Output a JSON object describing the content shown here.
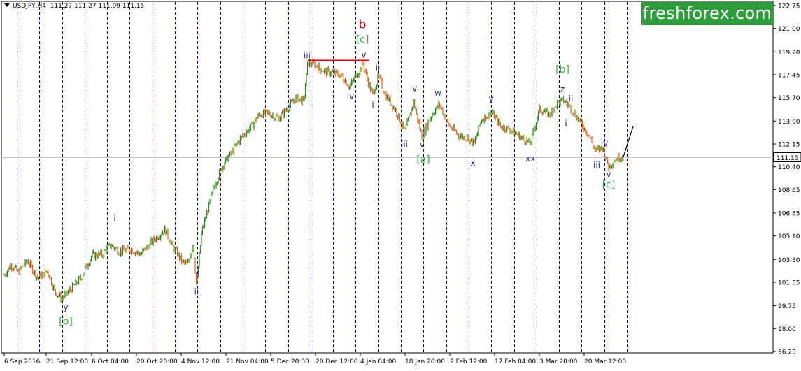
{
  "header": {
    "symbol_timeframe": "USDJPY,H4",
    "ohlc": "111.27 111.27 111.09 111.15"
  },
  "logo": {
    "text": "freshforex.com"
  },
  "colors": {
    "candle_up": "#2e8b1a",
    "candle_down": "#e8621f",
    "grid_vline": "#000080",
    "level_line": "#c8c8c8",
    "wave_label_blue": "#1f2a9c",
    "wave_label_green": "#2fb33a",
    "wave_label_red": "#d40000",
    "resistance_line": "#e00000",
    "brand": "#2e9d3c"
  },
  "chart_data": {
    "type": "candlestick",
    "symbol": "USDJPY",
    "timeframe": "H4",
    "current_price": 111.15,
    "current_price_label": "111.15",
    "ylim": [
      96.25,
      123.0
    ],
    "price_axis_ticks": [
      "122.75",
      "121.00",
      "119.20",
      "117.45",
      "115.70",
      "113.90",
      "112.15",
      "110.40",
      "108.65",
      "106.85",
      "105.10",
      "103.30",
      "101.55",
      "99.75",
      "98.00",
      "96.25"
    ],
    "time_axis_labels": [
      "6 Sep 2016",
      "21 Sep 12:00",
      "6 Oct 04:00",
      "20 Oct 20:00",
      "4 Nov 12:00",
      "21 Nov 04:00",
      "5 Dec 20:00",
      "20 Dec 12:00",
      "4 Jan 04:00",
      "18 Jan 20:00",
      "2 Feb 12:00",
      "17 Feb 04:00",
      "3 Mar 20:00",
      "20 Mar 12:00"
    ],
    "price_path": [
      {
        "t": 0,
        "p": 102.1
      },
      {
        "t": 10,
        "p": 102.9
      },
      {
        "t": 20,
        "p": 102.3
      },
      {
        "t": 33,
        "p": 103.2
      },
      {
        "t": 48,
        "p": 101.9
      },
      {
        "t": 62,
        "p": 102.4
      },
      {
        "t": 72,
        "p": 100.9
      },
      {
        "t": 82,
        "p": 100.3
      },
      {
        "t": 95,
        "p": 101.0
      },
      {
        "t": 110,
        "p": 101.9
      },
      {
        "t": 125,
        "p": 103.6
      },
      {
        "t": 140,
        "p": 103.7
      },
      {
        "t": 152,
        "p": 104.4
      },
      {
        "t": 165,
        "p": 103.9
      },
      {
        "t": 180,
        "p": 104.1
      },
      {
        "t": 195,
        "p": 103.7
      },
      {
        "t": 210,
        "p": 104.6
      },
      {
        "t": 230,
        "p": 105.6
      },
      {
        "t": 240,
        "p": 104.4
      },
      {
        "t": 255,
        "p": 103.1
      },
      {
        "t": 262,
        "p": 102.9
      },
      {
        "t": 270,
        "p": 104.5
      },
      {
        "t": 275,
        "p": 101.2
      },
      {
        "t": 282,
        "p": 105.3
      },
      {
        "t": 290,
        "p": 106.9
      },
      {
        "t": 300,
        "p": 108.9
      },
      {
        "t": 312,
        "p": 110.5
      },
      {
        "t": 325,
        "p": 111.5
      },
      {
        "t": 338,
        "p": 112.6
      },
      {
        "t": 352,
        "p": 113.4
      },
      {
        "t": 365,
        "p": 114.4
      },
      {
        "t": 378,
        "p": 114.5
      },
      {
        "t": 392,
        "p": 114.1
      },
      {
        "t": 405,
        "p": 114.9
      },
      {
        "t": 418,
        "p": 115.7
      },
      {
        "t": 428,
        "p": 115.4
      },
      {
        "t": 434,
        "p": 118.4
      },
      {
        "t": 445,
        "p": 118.2
      },
      {
        "t": 458,
        "p": 117.7
      },
      {
        "t": 470,
        "p": 117.6
      },
      {
        "t": 482,
        "p": 117.4
      },
      {
        "t": 494,
        "p": 116.5
      },
      {
        "t": 505,
        "p": 117.6
      },
      {
        "t": 513,
        "p": 118.3
      },
      {
        "t": 520,
        "p": 116.9
      },
      {
        "t": 527,
        "p": 115.9
      },
      {
        "t": 535,
        "p": 117.3
      },
      {
        "t": 545,
        "p": 115.9
      },
      {
        "t": 560,
        "p": 114.7
      },
      {
        "t": 573,
        "p": 113.1
      },
      {
        "t": 585,
        "p": 115.4
      },
      {
        "t": 597,
        "p": 112.7
      },
      {
        "t": 610,
        "p": 114.3
      },
      {
        "t": 622,
        "p": 115.2
      },
      {
        "t": 635,
        "p": 113.6
      },
      {
        "t": 650,
        "p": 112.8
      },
      {
        "t": 662,
        "p": 112.6
      },
      {
        "t": 672,
        "p": 112.2
      },
      {
        "t": 682,
        "p": 114.0
      },
      {
        "t": 696,
        "p": 114.6
      },
      {
        "t": 710,
        "p": 113.5
      },
      {
        "t": 725,
        "p": 113.2
      },
      {
        "t": 740,
        "p": 112.6
      },
      {
        "t": 752,
        "p": 112.2
      },
      {
        "t": 765,
        "p": 114.8
      },
      {
        "t": 780,
        "p": 114.4
      },
      {
        "t": 790,
        "p": 115.3
      },
      {
        "t": 800,
        "p": 115.5
      },
      {
        "t": 810,
        "p": 114.9
      },
      {
        "t": 822,
        "p": 113.9
      },
      {
        "t": 835,
        "p": 112.9
      },
      {
        "t": 845,
        "p": 111.6
      },
      {
        "t": 855,
        "p": 111.9
      },
      {
        "t": 864,
        "p": 110.4
      },
      {
        "t": 872,
        "p": 110.9
      },
      {
        "t": 882,
        "p": 111.2
      },
      {
        "t": 885,
        "p": 111.15
      }
    ],
    "projection": [
      {
        "t": 885,
        "p": 111.15
      },
      {
        "t": 899,
        "p": 113.5
      }
    ],
    "resistance_line": {
      "t_start": 434,
      "t_end": 522,
      "p": 118.55
    },
    "wave_labels": [
      {
        "text": "y",
        "t": 88,
        "p": 99.4,
        "color": "blue"
      },
      {
        "text": "[b]",
        "t": 88,
        "p": 98.3,
        "color": "green"
      },
      {
        "text": "i",
        "t": 158,
        "p": 106.2,
        "color": "blue"
      },
      {
        "text": "ii",
        "t": 275,
        "p": 100.6,
        "color": "blue"
      },
      {
        "text": "iii",
        "t": 433,
        "p": 118.7,
        "color": "blue"
      },
      {
        "text": "b",
        "t": 512,
        "p": 121.0,
        "color": "red"
      },
      {
        "text": "[c]",
        "t": 512,
        "p": 119.9,
        "color": "green"
      },
      {
        "text": "v",
        "t": 514,
        "p": 118.75,
        "color": "blue"
      },
      {
        "text": "iv",
        "t": 495,
        "p": 115.6,
        "color": "blue"
      },
      {
        "text": "ii",
        "t": 534,
        "p": 117.8,
        "color": "blue"
      },
      {
        "text": "i",
        "t": 527,
        "p": 114.9,
        "color": "blue"
      },
      {
        "text": "iv",
        "t": 585,
        "p": 116.2,
        "color": "blue"
      },
      {
        "text": "iii",
        "t": 572,
        "p": 111.9,
        "color": "blue"
      },
      {
        "text": "v",
        "t": 597,
        "p": 111.9,
        "color": "blue"
      },
      {
        "text": "[a]",
        "t": 599,
        "p": 110.7,
        "color": "green"
      },
      {
        "text": "w",
        "t": 620,
        "p": 115.85,
        "color": "blue"
      },
      {
        "text": "x",
        "t": 670,
        "p": 110.5,
        "color": "blue"
      },
      {
        "text": "y",
        "t": 696,
        "p": 115.4,
        "color": "blue"
      },
      {
        "text": "xx",
        "t": 752,
        "p": 110.8,
        "color": "blue"
      },
      {
        "text": "[b]",
        "t": 798,
        "p": 117.6,
        "color": "green"
      },
      {
        "text": "z",
        "t": 798,
        "p": 116.1,
        "color": "blue"
      },
      {
        "text": "ii",
        "t": 810,
        "p": 115.4,
        "color": "blue"
      },
      {
        "text": "i",
        "t": 803,
        "p": 113.5,
        "color": "blue"
      },
      {
        "text": "iv",
        "t": 858,
        "p": 112.0,
        "color": "blue"
      },
      {
        "text": "iii",
        "t": 847,
        "p": 110.3,
        "color": "blue"
      },
      {
        "text": "v",
        "t": 864,
        "p": 109.6,
        "color": "blue"
      },
      {
        "text": "[c]",
        "t": 864,
        "p": 108.8,
        "color": "green"
      }
    ]
  }
}
